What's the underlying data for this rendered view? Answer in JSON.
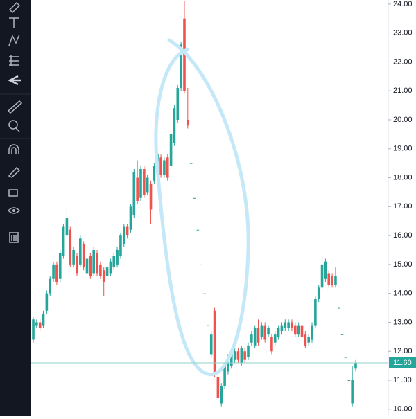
{
  "chart_data": {
    "type": "candlestick",
    "up_color": "#26a69a",
    "down_color": "#ef5350",
    "ylim": [
      9.78,
      24.14
    ],
    "yticks": [
      {
        "value": 10,
        "label": "10.00"
      },
      {
        "value": 11,
        "label": "11.00"
      },
      {
        "value": 12,
        "label": "12.00"
      },
      {
        "value": 13,
        "label": "13.00"
      },
      {
        "value": 14,
        "label": "14.00"
      },
      {
        "value": 15,
        "label": "15.00"
      },
      {
        "value": 16,
        "label": "16.00"
      },
      {
        "value": 17,
        "label": "17.00"
      },
      {
        "value": 18,
        "label": "18.00"
      },
      {
        "value": 19,
        "label": "19.00"
      },
      {
        "value": 20,
        "label": "20.00"
      },
      {
        "value": 21,
        "label": "21.00"
      },
      {
        "value": 22,
        "label": "22.00"
      },
      {
        "value": 23,
        "label": "23.00"
      },
      {
        "value": 24,
        "label": "24.00"
      }
    ],
    "last_price": {
      "value": 11.6,
      "label": "11.60"
    },
    "ohlc": [
      [
        12.4,
        13.2,
        12.3,
        13.1
      ],
      [
        12.9,
        13.1,
        12.8,
        13.0
      ],
      [
        13.0,
        13.1,
        12.7,
        12.8
      ],
      [
        12.9,
        13.4,
        12.8,
        13.3
      ],
      [
        13.4,
        14.1,
        13.3,
        14.0
      ],
      [
        14.0,
        14.6,
        13.9,
        14.5
      ],
      [
        14.5,
        15.1,
        14.4,
        15.0
      ],
      [
        15.0,
        15.1,
        14.3,
        14.4
      ],
      [
        14.5,
        15.5,
        14.4,
        15.4
      ],
      [
        15.3,
        16.4,
        15.2,
        16.3
      ],
      [
        16.0,
        16.9,
        15.9,
        16.6
      ],
      [
        16.2,
        16.3,
        14.9,
        15.0
      ],
      [
        15.0,
        15.6,
        14.9,
        15.5
      ],
      [
        15.3,
        15.4,
        14.6,
        14.7
      ],
      [
        15.0,
        16.0,
        14.9,
        15.9
      ],
      [
        15.7,
        15.8,
        14.8,
        14.9
      ],
      [
        14.7,
        15.3,
        14.6,
        15.2
      ],
      [
        15.3,
        15.4,
        14.5,
        14.6
      ],
      [
        14.7,
        15.6,
        14.6,
        15.5
      ],
      [
        15.4,
        15.5,
        14.6,
        14.7
      ],
      [
        15.0,
        15.1,
        14.5,
        14.6
      ],
      [
        14.8,
        14.9,
        13.9,
        14.4
      ],
      [
        14.6,
        15.0,
        14.5,
        14.9
      ],
      [
        14.7,
        15.2,
        14.6,
        15.1
      ],
      [
        14.9,
        15.4,
        14.8,
        15.3
      ],
      [
        15.0,
        15.6,
        14.9,
        15.5
      ],
      [
        15.3,
        16.1,
        15.2,
        16.0
      ],
      [
        15.7,
        16.4,
        15.6,
        16.3
      ],
      [
        16.3,
        16.4,
        15.9,
        16.0
      ],
      [
        16.2,
        17.1,
        16.1,
        17.0
      ],
      [
        16.7,
        18.3,
        16.6,
        18.2
      ],
      [
        18.0,
        18.6,
        17.1,
        17.2
      ],
      [
        17.3,
        18.4,
        17.2,
        18.3
      ],
      [
        18.3,
        18.4,
        17.3,
        17.4
      ],
      [
        17.5,
        18.1,
        17.4,
        18.0
      ],
      [
        17.8,
        17.9,
        16.4,
        16.9
      ],
      [
        17.9,
        18.5,
        17.8,
        18.4
      ],
      [
        18.3,
        18.9,
        18.2,
        18.8
      ],
      [
        18.7,
        18.8,
        18.0,
        18.1
      ],
      [
        18.1,
        18.7,
        18.0,
        18.6
      ],
      [
        18.7,
        18.8,
        17.9,
        18.0
      ],
      [
        18.4,
        19.6,
        18.3,
        19.5
      ],
      [
        19.2,
        20.5,
        19.1,
        20.4
      ],
      [
        20.0,
        21.2,
        19.9,
        21.1
      ],
      [
        21.1,
        22.7,
        21.0,
        22.6
      ],
      [
        23.5,
        24.1,
        20.9,
        21.0
      ],
      [
        20.0,
        21.1,
        19.7,
        19.8
      ],
      [
        18.5,
        18.5,
        18.5,
        18.5
      ],
      [
        17.3,
        17.3,
        17.3,
        17.3
      ],
      [
        16.2,
        16.2,
        16.2,
        16.2
      ],
      [
        15.0,
        15.0,
        15.0,
        15.0
      ],
      [
        14.0,
        14.0,
        14.0,
        14.0
      ],
      [
        12.9,
        12.9,
        12.9,
        12.9
      ],
      [
        11.9,
        12.7,
        11.8,
        12.6
      ],
      [
        13.4,
        13.5,
        11.1,
        11.2
      ],
      [
        11.1,
        11.2,
        10.3,
        10.4
      ],
      [
        10.2,
        10.9,
        10.1,
        10.8
      ],
      [
        10.8,
        11.6,
        10.7,
        11.5
      ],
      [
        11.3,
        11.9,
        11.2,
        11.8
      ],
      [
        11.5,
        12.1,
        11.4,
        12.0
      ],
      [
        11.7,
        12.1,
        11.6,
        12.0
      ],
      [
        12.0,
        12.1,
        11.6,
        11.7
      ],
      [
        11.6,
        12.2,
        11.5,
        12.1
      ],
      [
        12.0,
        12.1,
        11.6,
        11.7
      ],
      [
        11.8,
        12.3,
        11.7,
        12.2
      ],
      [
        12.3,
        12.7,
        12.2,
        12.6
      ],
      [
        12.2,
        12.9,
        12.1,
        12.8
      ],
      [
        12.8,
        13.1,
        12.2,
        12.3
      ],
      [
        12.5,
        13.0,
        12.4,
        12.9
      ],
      [
        12.9,
        13.0,
        12.3,
        12.4
      ],
      [
        12.6,
        12.9,
        12.5,
        12.8
      ],
      [
        12.5,
        12.6,
        11.9,
        12.0
      ],
      [
        12.3,
        12.7,
        12.2,
        12.6
      ],
      [
        12.5,
        12.9,
        12.4,
        12.8
      ],
      [
        12.7,
        13.0,
        12.6,
        12.9
      ],
      [
        12.8,
        13.1,
        12.7,
        13.0
      ],
      [
        12.8,
        13.1,
        12.7,
        13.0
      ],
      [
        13.0,
        13.1,
        12.7,
        12.8
      ],
      [
        12.9,
        13.0,
        12.5,
        12.6
      ],
      [
        12.6,
        13.0,
        12.5,
        12.9
      ],
      [
        12.9,
        13.0,
        12.4,
        12.5
      ],
      [
        12.6,
        12.7,
        12.1,
        12.2
      ],
      [
        12.3,
        12.6,
        12.2,
        12.5
      ],
      [
        12.4,
        13.0,
        12.3,
        12.9
      ],
      [
        12.9,
        13.9,
        12.8,
        13.8
      ],
      [
        13.8,
        14.3,
        13.7,
        14.2
      ],
      [
        14.2,
        15.3,
        14.1,
        15.0
      ],
      [
        14.5,
        15.2,
        14.4,
        15.1
      ],
      [
        14.7,
        14.8,
        14.2,
        14.3
      ],
      [
        14.6,
        14.7,
        14.2,
        14.3
      ],
      [
        14.3,
        14.9,
        14.2,
        14.6
      ],
      [
        13.5,
        13.5,
        13.5,
        13.5
      ],
      [
        12.6,
        12.6,
        12.6,
        12.6
      ],
      [
        11.8,
        11.8,
        11.8,
        11.8
      ],
      [
        11.0,
        11.0,
        11.0,
        11.0
      ],
      [
        10.2,
        11.5,
        10.1,
        11.0
      ],
      [
        11.4,
        11.7,
        11.3,
        11.6
      ]
    ]
  }
}
